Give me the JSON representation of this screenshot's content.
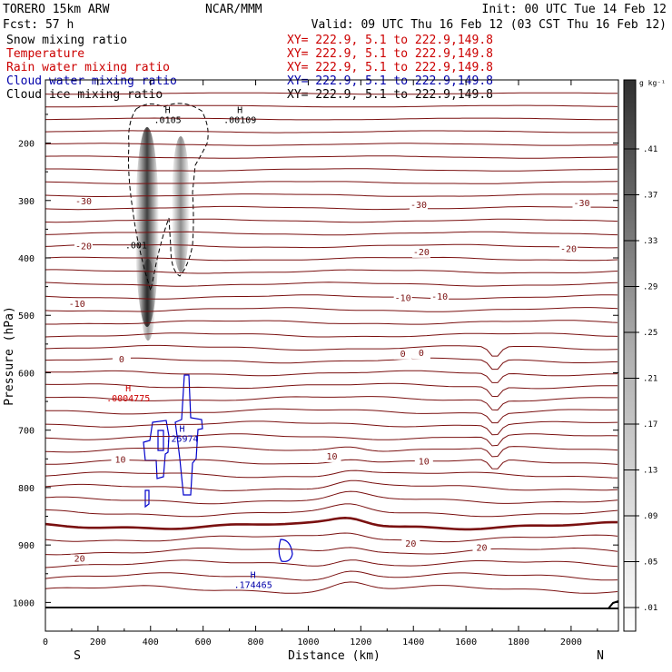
{
  "header": {
    "model": "TORERO  15km ARW",
    "org": "NCAR/MMM",
    "init": "Init: 00 UTC Tue 14 Feb 12",
    "fcst": "Fcst:   57 h",
    "valid": "Valid: 09 UTC Thu 16 Feb 12 (03 CST Thu 16 Feb 12)"
  },
  "fields": [
    {
      "name": "Snow mixing ratio",
      "xy": "XY= 222.9,  5.1 to 222.9,149.8",
      "color": "#000000"
    },
    {
      "name": "Temperature",
      "xy": "XY= 222.9,  5.1 to 222.9,149.8",
      "color": "#cc0000"
    },
    {
      "name": "Rain water mixing ratio",
      "xy": "XY= 222.9,  5.1 to 222.9,149.8",
      "color": "#cc0000"
    },
    {
      "name": "Cloud water mixing ratio",
      "xy": "XY= 222.9,  5.1 to 222.9,149.8",
      "color": "#0000aa"
    },
    {
      "name": "Cloud ice mixing ratio",
      "xy": "XY= 222.9,  5.1 to 222.9,149.8",
      "color": "#000000"
    }
  ],
  "colorbar": {
    "unit": "g kg⁻¹",
    "ticks": [
      ".41",
      ".37",
      ".33",
      ".29",
      ".25",
      ".21",
      ".17",
      ".13",
      ".09",
      ".05",
      ".01"
    ]
  },
  "maxima": [
    {
      "letter": "H",
      "value": ".0105",
      "color": "#000000",
      "x_km": 465,
      "p": 165
    },
    {
      "letter": "H",
      "value": ".00109",
      "color": "#000000",
      "x_km": 740,
      "p": 165
    },
    {
      "letter": "H",
      "value": ".0004775",
      "color": "#cc0000",
      "x_km": 315,
      "p": 650
    },
    {
      "letter": "H",
      "value": ".25974",
      "color": "#0000aa",
      "x_km": 520,
      "p": 720
    },
    {
      "letter": "H",
      "value": ".174465",
      "color": "#0000aa",
      "x_km": 790,
      "p": 975
    }
  ],
  "chart_data": {
    "type": "cross-section",
    "xlabel": "Distance (km)",
    "ylabel": "Pressure (hPa)",
    "xlim": [
      0,
      2180
    ],
    "ylim": [
      1050,
      90
    ],
    "xticks": [
      0,
      200,
      400,
      600,
      800,
      1000,
      1200,
      1400,
      1600,
      1800,
      2000
    ],
    "yticks": [
      200,
      300,
      400,
      500,
      600,
      700,
      800,
      900,
      1000
    ],
    "y_axis_direction": "inverted",
    "x_end_labels": {
      "left": "S",
      "right": "N"
    },
    "temperature_isotherm_labels": [
      {
        "text": "-30",
        "x_km": 145,
        "p": 307
      },
      {
        "text": "-30",
        "x_km": 1420,
        "p": 313
      },
      {
        "text": "-30",
        "x_km": 2040,
        "p": 310
      },
      {
        "text": "-20",
        "x_km": 145,
        "p": 385
      },
      {
        "text": "-20",
        "x_km": 1430,
        "p": 395
      },
      {
        "text": "-20",
        "x_km": 1990,
        "p": 390
      },
      {
        "text": "-10",
        "x_km": 120,
        "p": 485
      },
      {
        "text": "-10",
        "x_km": 1360,
        "p": 475
      },
      {
        "text": "-10",
        "x_km": 1500,
        "p": 473
      },
      {
        "text": "0",
        "x_km": 290,
        "p": 582
      },
      {
        "text": "0",
        "x_km": 1360,
        "p": 572
      },
      {
        "text": "0",
        "x_km": 1430,
        "p": 571
      },
      {
        "text": "10",
        "x_km": 285,
        "p": 757
      },
      {
        "text": "10",
        "x_km": 1090,
        "p": 751
      },
      {
        "text": "10",
        "x_km": 1440,
        "p": 760
      },
      {
        "text": "20",
        "x_km": 130,
        "p": 929
      },
      {
        "text": "20",
        "x_km": 1390,
        "p": 903
      },
      {
        "text": "20",
        "x_km": 1660,
        "p": 910
      }
    ],
    "snow_contour_labels": [
      {
        "text": ".001",
        "x_km": 345,
        "p": 383
      }
    ]
  }
}
